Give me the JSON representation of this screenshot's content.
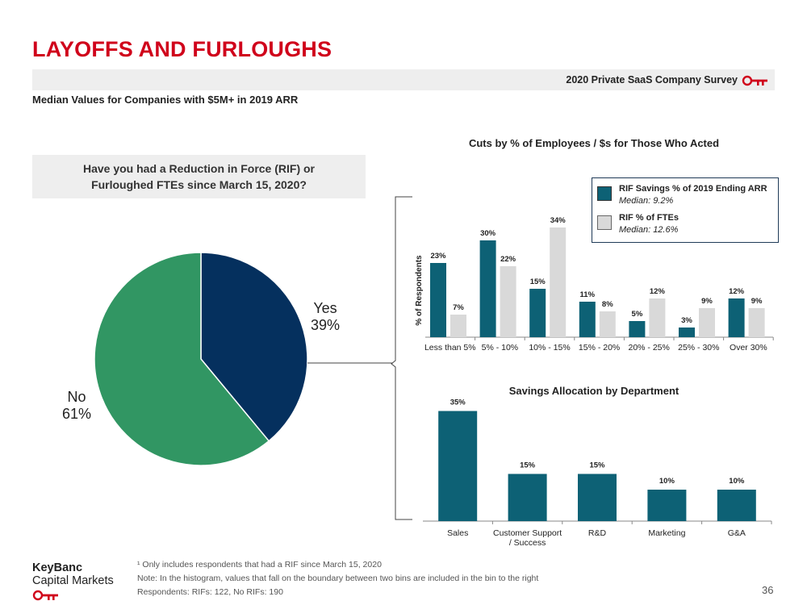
{
  "header": {
    "title": "LAYOFFS AND FURLOUGHS",
    "survey_label": "2020 Private SaaS Company Survey",
    "subtitle": "Median Values for Companies with $5M+ in 2019 ARR"
  },
  "pie_question": {
    "line1": "Have you had a Reduction in Force (RIF) or",
    "line2": "Furloughed FTEs since March 15, 2020?"
  },
  "pie_labels": {
    "yes_name": "Yes",
    "yes_pct": "39%",
    "no_name": "No",
    "no_pct": "61%"
  },
  "bar_legend": {
    "series1_name": "RIF Savings % of 2019 Ending ARR",
    "series1_median": "Median: 9.2%",
    "series2_name": "RIF % of FTEs",
    "series2_median": "Median: 12.6%"
  },
  "colors": {
    "teal": "#0d6175",
    "light_gray": "#d9d9d9",
    "navy": "#05305e",
    "green": "#319663",
    "brand_red": "#d0021b"
  },
  "footnote": {
    "line1": "¹ Only includes respondents that had a RIF since March 15, 2020",
    "line2": "Note: In the histogram, values that fall on the boundary between two bins are included in the bin to the right",
    "line3": "Respondents: RIFs: 122, No RIFs: 190"
  },
  "footer": {
    "logo_line1": "KeyBanc",
    "logo_line2": "Capital Markets",
    "page_number": "36"
  },
  "chart_data": [
    {
      "type": "pie",
      "labels": [
        "Yes",
        "No"
      ],
      "values": [
        39,
        61
      ],
      "colors": [
        "#05305e",
        "#319663"
      ]
    },
    {
      "type": "bar",
      "title": "Cuts by % of Employees / $s for Those Who Acted",
      "ylabel": "% of Respondents",
      "categories": [
        "Less than 5%",
        "5% - 10%",
        "10% - 15%",
        "15% - 20%",
        "20% - 25%",
        "25% - 30%",
        "Over 30%"
      ],
      "series": [
        {
          "name": "RIF Savings % of 2019 Ending ARR",
          "values": [
            23,
            30,
            15,
            11,
            5,
            3,
            12
          ],
          "labels": [
            "23%",
            "30%",
            "15%",
            "11%",
            "5%",
            "3%",
            "12%"
          ],
          "color": "#0d6175"
        },
        {
          "name": "RIF % of FTEs",
          "values": [
            7,
            22,
            34,
            8,
            12,
            9,
            9
          ],
          "labels": [
            "7%",
            "22%",
            "34%",
            "8%",
            "12%",
            "9%",
            "9%"
          ],
          "color": "#d9d9d9"
        }
      ],
      "ylim": [
        0,
        40
      ],
      "grid": false,
      "legend": "top-right"
    },
    {
      "type": "bar",
      "title": "Savings Allocation by Department",
      "categories": [
        "Sales",
        "Customer Support / Success",
        "R&D",
        "Marketing",
        "G&A"
      ],
      "category_lines": [
        [
          "Sales"
        ],
        [
          "Customer Support",
          "/ Success"
        ],
        [
          "R&D"
        ],
        [
          "Marketing"
        ],
        [
          "G&A"
        ]
      ],
      "values": [
        35,
        15,
        15,
        10,
        10
      ],
      "labels": [
        "35%",
        "15%",
        "15%",
        "10%",
        "10%"
      ],
      "color": "#0d6175",
      "ylim": [
        0,
        40
      ],
      "grid": false
    }
  ]
}
